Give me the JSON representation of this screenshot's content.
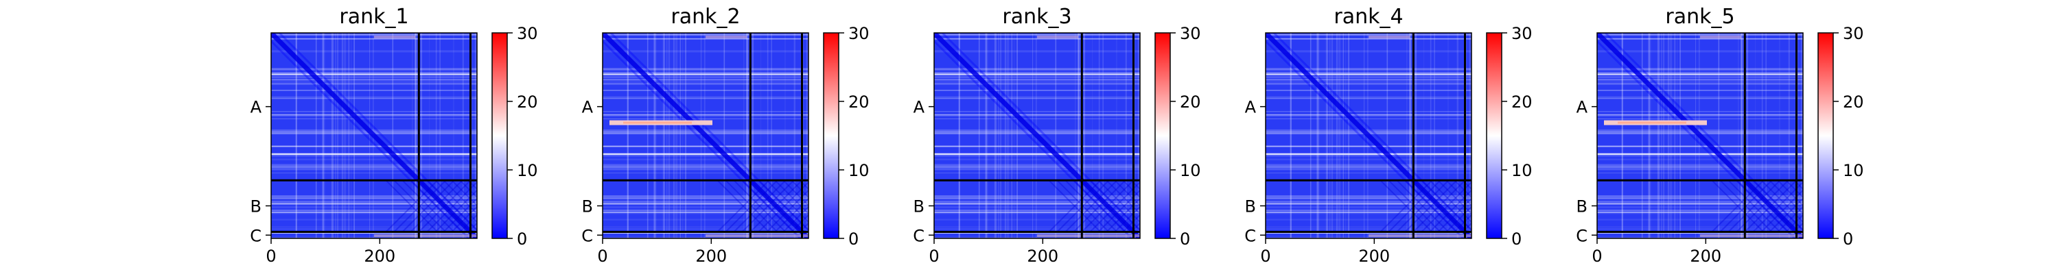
{
  "chart_data": {
    "type": "heatmap",
    "panels": [
      {
        "title": "rank_1",
        "bright_band_row": null
      },
      {
        "title": "rank_2",
        "bright_band_row": 165
      },
      {
        "title": "rank_3",
        "bright_band_row": null
      },
      {
        "title": "rank_4",
        "bright_band_row": null
      },
      {
        "title": "rank_5",
        "bright_band_row": 165
      }
    ],
    "matrix_size": 379,
    "chain_boundaries": [
      272,
      367
    ],
    "chain_labels": [
      {
        "label": "A",
        "position": 136
      },
      {
        "label": "B",
        "position": 319
      },
      {
        "label": "C",
        "position": 373
      }
    ],
    "xticks": [
      0,
      200
    ],
    "colorbar": {
      "min": 0,
      "max": 30,
      "ticks": [
        0,
        10,
        20,
        30
      ],
      "colors": [
        "#0000ff",
        "#ffffff",
        "#ff0000"
      ]
    }
  }
}
